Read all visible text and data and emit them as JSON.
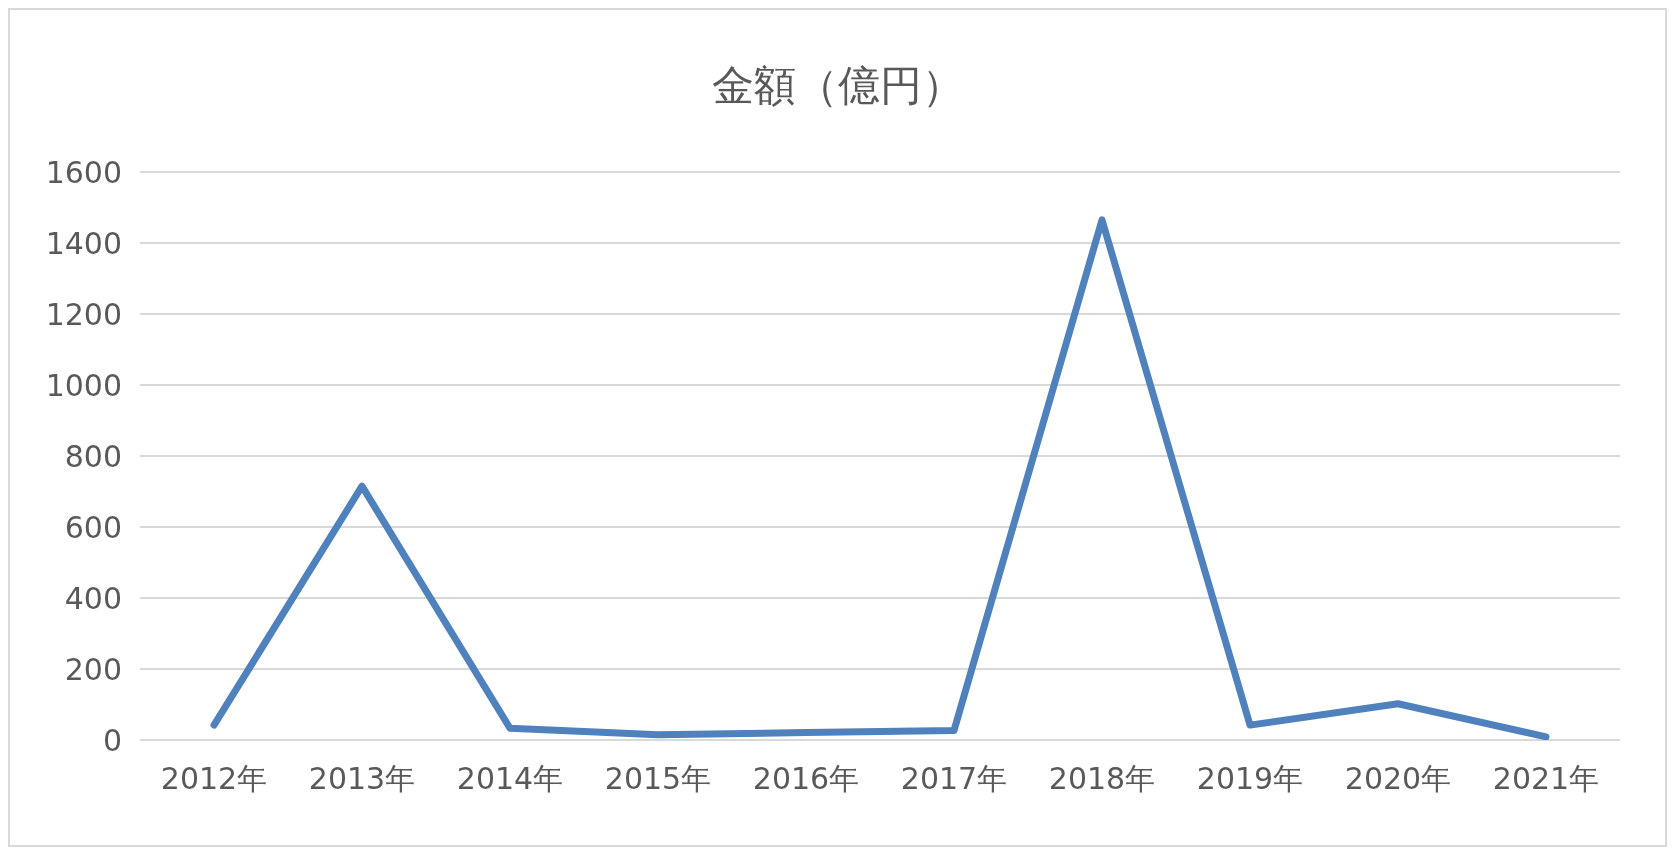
{
  "chart_data": {
    "type": "line",
    "title": "金額（億円）",
    "categories": [
      "2012年",
      "2013年",
      "2014年",
      "2015年",
      "2016年",
      "2017年",
      "2018年",
      "2019年",
      "2020年",
      "2021年"
    ],
    "series": [
      {
        "color": "#4f81bd",
        "values": [
          42,
          715,
          33,
          15,
          21,
          27,
          1465,
          42,
          102,
          9
        ]
      }
    ],
    "ylim": [
      0,
      1600
    ],
    "yticks": [
      0,
      200,
      400,
      600,
      800,
      1000,
      1200,
      1400,
      1600
    ],
    "grid": "y",
    "legend": false,
    "marker": "none",
    "line_style": "solid"
  }
}
